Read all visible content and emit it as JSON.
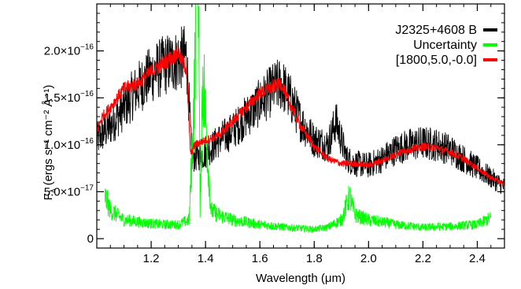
{
  "chart_data": {
    "type": "line",
    "title": "",
    "xlabel": "Wavelength (μm)",
    "ylabel_main": "F",
    "ylabel_sub": "λ",
    "ylabel_units": "(ergs s⁻¹ cm⁻² Å⁻¹)",
    "xlim": [
      1.0,
      2.5
    ],
    "ylim": [
      -1e-17,
      2.5e-16
    ],
    "x_ticks": [
      1.2,
      1.4,
      1.6,
      1.8,
      2.0,
      2.2,
      2.4
    ],
    "x_tick_labels": [
      "1.2",
      "1.4",
      "1.6",
      "1.8",
      "2.0",
      "2.2",
      "2.4"
    ],
    "y_ticks": [
      0,
      5e-17,
      1e-16,
      1.5e-16,
      2e-16
    ],
    "y_tick_labels": [
      {
        "mantissa": "0",
        "exp": ""
      },
      {
        "mantissa": "5.0×10",
        "exp": "−17"
      },
      {
        "mantissa": "1.0×10",
        "exp": "−16"
      },
      {
        "mantissa": "1.5×10",
        "exp": "−16"
      },
      {
        "mantissa": "2.0×10",
        "exp": "−16"
      }
    ],
    "legend_position": "top-right",
    "series": [
      {
        "name": "J2325+4608 B",
        "color": "#000000",
        "style": "noisy",
        "x": [
          1.0,
          1.05,
          1.1,
          1.15,
          1.2,
          1.25,
          1.3,
          1.33,
          1.35,
          1.4,
          1.45,
          1.5,
          1.55,
          1.6,
          1.65,
          1.68,
          1.72,
          1.75,
          1.8,
          1.85,
          1.88,
          1.92,
          1.95,
          2.0,
          2.05,
          2.1,
          2.15,
          2.2,
          2.25,
          2.3,
          2.35,
          2.4,
          2.45,
          2.5
        ],
        "y": [
          1.05e-16,
          1.2e-16,
          1.4e-16,
          1.6e-16,
          1.75e-16,
          1.85e-16,
          1.9e-16,
          1.95e-16,
          8.5e-17,
          9e-17,
          1.05e-16,
          1.15e-16,
          1.3e-16,
          1.45e-16,
          1.6e-16,
          1.65e-16,
          1.45e-16,
          1.25e-16,
          1.05e-16,
          1e-16,
          1.25e-16,
          8.5e-17,
          8e-17,
          7.8e-17,
          8.5e-17,
          9.5e-17,
          1e-16,
          1.02e-16,
          1e-16,
          9.5e-17,
          8.5e-17,
          7.5e-17,
          6.5e-17,
          5.5e-17
        ]
      },
      {
        "name": "Uncertainty",
        "color": "#00ff00",
        "style": "noisy",
        "x": [
          1.03,
          1.05,
          1.1,
          1.15,
          1.2,
          1.25,
          1.3,
          1.34,
          1.36,
          1.37,
          1.38,
          1.39,
          1.42,
          1.45,
          1.5,
          1.6,
          1.7,
          1.8,
          1.85,
          1.9,
          1.93,
          1.95,
          2.0,
          2.1,
          2.2,
          2.3,
          2.4,
          2.45
        ],
        "y": [
          4.5e-17,
          3e-17,
          2e-17,
          1.8e-17,
          1.6e-17,
          1.5e-17,
          1.5e-17,
          2e-17,
          1.6e-16,
          4e-16,
          3e-17,
          1.8e-16,
          3e-17,
          2.5e-17,
          2e-17,
          1.5e-17,
          1.2e-17,
          1e-17,
          1.2e-17,
          2e-17,
          4.5e-17,
          2.5e-17,
          2e-17,
          1.5e-17,
          1.2e-17,
          1.3e-17,
          1.5e-17,
          2.2e-17
        ]
      },
      {
        "name": "[1800,5.0,-0.0]",
        "color": "#ff0000",
        "style": "smooth",
        "x": [
          1.0,
          1.02,
          1.05,
          1.1,
          1.15,
          1.2,
          1.25,
          1.3,
          1.33,
          1.345,
          1.36,
          1.4,
          1.45,
          1.5,
          1.55,
          1.6,
          1.65,
          1.68,
          1.7,
          1.75,
          1.8,
          1.85,
          1.9,
          1.95,
          2.0,
          2.05,
          2.1,
          2.15,
          2.2,
          2.25,
          2.3,
          2.35,
          2.4,
          2.45,
          2.5
        ],
        "y": [
          1.15e-16,
          1.3e-16,
          1.4e-16,
          1.6e-16,
          1.65e-16,
          1.78e-16,
          1.88e-16,
          1.98e-16,
          1.8e-16,
          9e-17,
          1e-16,
          1.05e-16,
          1.1e-16,
          1.25e-16,
          1.4e-16,
          1.55e-16,
          1.62e-16,
          1.65e-16,
          1.5e-16,
          1.2e-16,
          9.8e-17,
          8.5e-17,
          8e-17,
          8e-17,
          7.8e-17,
          8.3e-17,
          9e-17,
          9.5e-17,
          9.8e-17,
          9.7e-17,
          9.2e-17,
          8.5e-17,
          7.5e-17,
          6.5e-17,
          5.8e-17
        ]
      }
    ]
  }
}
